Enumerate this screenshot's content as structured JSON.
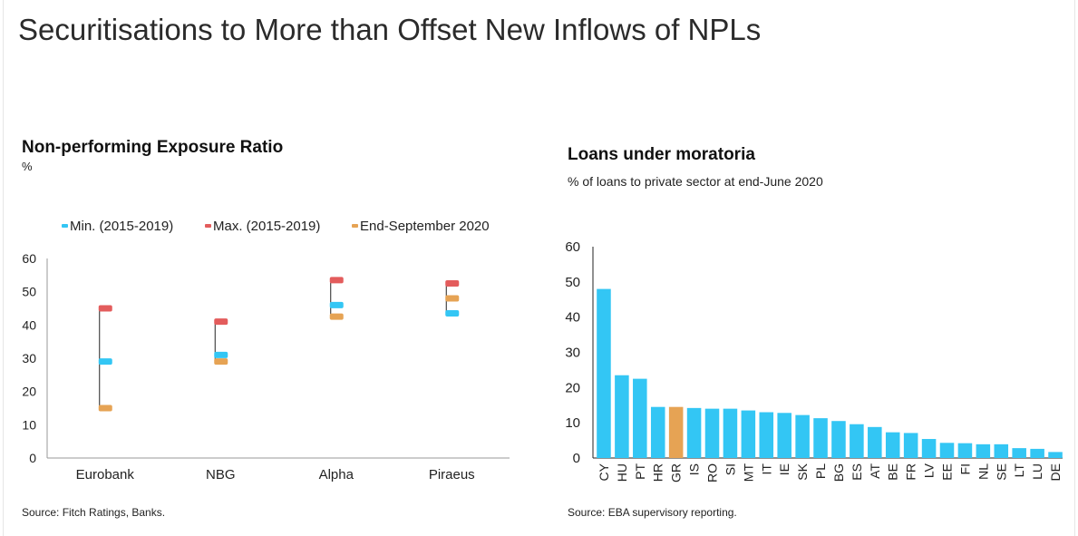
{
  "page": {
    "title": "Securitisations to More than Offset New Inflows of NPLs"
  },
  "colors": {
    "min": "#33c6f4",
    "max": "#e35c5c",
    "end": "#e6a354",
    "bar": "#33c6f4",
    "highlight": "#e6a354",
    "axis": "#222222"
  },
  "chart_data": [
    {
      "type": "dot-range",
      "title": "Non-performing Exposure Ratio",
      "ylabel": "%",
      "ylim": [
        0,
        60
      ],
      "yticks": [
        "0",
        "10",
        "20",
        "30",
        "40",
        "50",
        "60"
      ],
      "categories": [
        "Eurobank",
        "NBG",
        "Alpha",
        "Piraeus"
      ],
      "series": [
        {
          "name": "Min. (2015-2019)",
          "values": [
            29,
            31,
            46,
            43.5
          ]
        },
        {
          "name": "Max. (2015-2019)",
          "values": [
            45,
            41,
            53.5,
            52.5
          ]
        },
        {
          "name": "End-September 2020",
          "values": [
            15,
            29,
            42.5,
            48
          ]
        }
      ],
      "legend": [
        "Min. (2015-2019)",
        "Max. (2015-2019)",
        "End-September 2020"
      ],
      "source": "Source: Fitch Ratings, Banks."
    },
    {
      "type": "bar",
      "title": "Loans under moratoria",
      "subtitle": "% of loans to private sector at end-June 2020",
      "ylim": [
        0,
        60
      ],
      "yticks": [
        "0",
        "10",
        "20",
        "30",
        "40",
        "50",
        "60"
      ],
      "categories": [
        "CY",
        "HU",
        "PT",
        "HR",
        "GR",
        "IS",
        "RO",
        "SI",
        "MT",
        "IT",
        "IE",
        "SK",
        "PL",
        "BG",
        "ES",
        "AT",
        "BE",
        "FR",
        "LV",
        "EE",
        "FI",
        "NL",
        "SE",
        "LT",
        "LU",
        "DE"
      ],
      "values": [
        48,
        23.5,
        22.5,
        14.5,
        14.5,
        14.2,
        14,
        14,
        13.5,
        13,
        12.8,
        12.2,
        11.3,
        10.5,
        9.6,
        8.8,
        7.3,
        7.1,
        5.4,
        4.3,
        4.2,
        3.9,
        3.9,
        2.8,
        2.6,
        1.7
      ],
      "highlight": "GR",
      "source": "Source: EBA supervisory reporting."
    }
  ]
}
